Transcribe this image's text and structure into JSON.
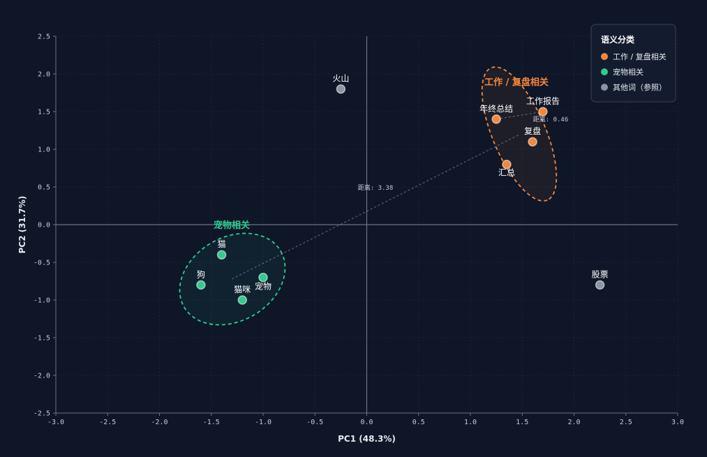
{
  "chart_data": {
    "type": "scatter",
    "xlabel": "PC1 (48.3%)",
    "ylabel": "PC2 (31.7%)",
    "xlim": [
      -3.0,
      3.0
    ],
    "ylim": [
      -2.5,
      2.5
    ],
    "xticks": [
      "-3.0",
      "-2.5",
      "-2.0",
      "-1.5",
      "-1.0",
      "-0.5",
      "0.0",
      "0.5",
      "1.0",
      "1.5",
      "2.0",
      "2.5",
      "3.0"
    ],
    "yticks": [
      "2.5",
      "2.0",
      "1.5",
      "1.0",
      "0.5",
      "0.0",
      "-0.5",
      "-1.0",
      "-1.5",
      "-2.0",
      "-2.5"
    ],
    "grid": true,
    "legend": {
      "title": "语义分类",
      "position": "top-right"
    },
    "series": [
      {
        "name": "工作 / 复盘相关",
        "color": "#f4883a",
        "points": [
          {
            "label": "年终总结",
            "x": 1.25,
            "y": 1.4
          },
          {
            "label": "工作报告",
            "x": 1.7,
            "y": 1.5
          },
          {
            "label": "复盘",
            "x": 1.6,
            "y": 1.1
          },
          {
            "label": "汇总",
            "x": 1.35,
            "y": 0.8
          }
        ]
      },
      {
        "name": "宠物相关",
        "color": "#2ecc8f",
        "points": [
          {
            "label": "猫",
            "x": -1.4,
            "y": -0.4
          },
          {
            "label": "狗",
            "x": -1.6,
            "y": -0.8
          },
          {
            "label": "宠物",
            "x": -1.0,
            "y": -0.7
          },
          {
            "label": "猫咪",
            "x": -1.2,
            "y": -1.0
          }
        ]
      },
      {
        "name": "其他词（参照）",
        "color": "#8c95a3",
        "points": [
          {
            "label": "火山",
            "x": -0.25,
            "y": 1.8
          },
          {
            "label": "股票",
            "x": 2.25,
            "y": -0.8
          }
        ]
      }
    ],
    "clusters": [
      {
        "title": "工作 / 复盘相关",
        "color": "#f4883a"
      },
      {
        "title": "宠物相关",
        "color": "#2ecc8f"
      }
    ],
    "annotations": [
      {
        "text": "距离: 3.38",
        "from": [
          -1.3,
          -0.72
        ],
        "to": [
          1.48,
          1.2
        ]
      },
      {
        "text": "距离: 0.46",
        "from": [
          1.25,
          1.4
        ],
        "to": [
          1.7,
          1.5
        ]
      }
    ]
  }
}
